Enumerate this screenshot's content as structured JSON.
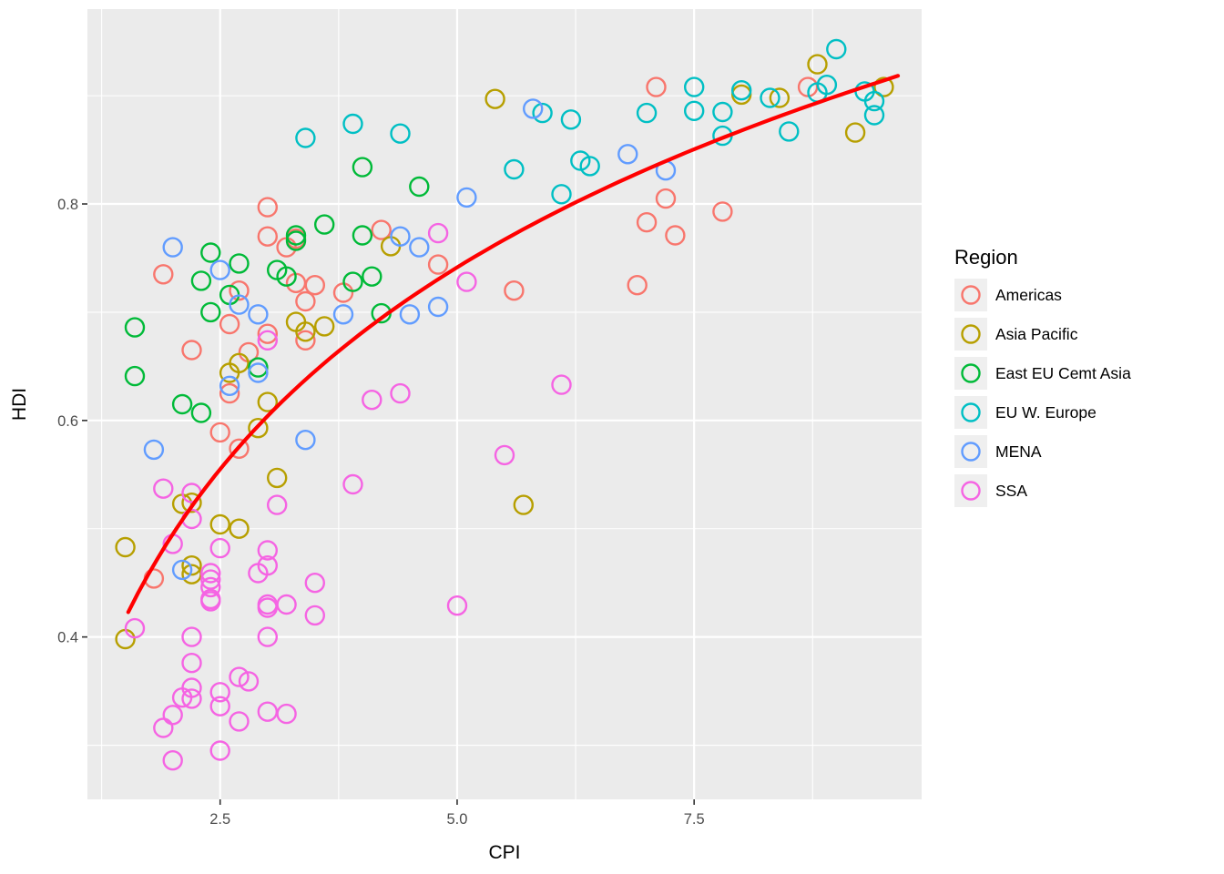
{
  "chart_data": {
    "type": "scatter",
    "title": "",
    "xlabel": "CPI",
    "ylabel": "HDI",
    "xlim": [
      1.1,
      9.9
    ],
    "ylim": [
      0.25,
      0.98
    ],
    "x_ticks": [
      2.5,
      5.0,
      7.5
    ],
    "x_tick_labels": [
      "2.5",
      "5.0",
      "7.5"
    ],
    "y_ticks": [
      0.4,
      0.6,
      0.8
    ],
    "y_tick_labels": [
      "0.4",
      "0.6",
      "0.8"
    ],
    "x_minor_ticks": [
      1.25,
      3.75,
      6.25,
      8.75
    ],
    "y_minor_ticks": [
      0.3,
      0.5,
      0.7,
      0.9
    ],
    "grid": true,
    "panel_bg": "#EBEBEB",
    "grid_color": "#FFFFFF",
    "tick_label_color": "#4D4D4D",
    "point_style": {
      "shape": "open-circle",
      "radius": 10,
      "stroke_width": 2.4
    },
    "legend": {
      "title": "Region",
      "position": "right"
    },
    "trend": {
      "type": "log",
      "color": "#FF0000",
      "a": 0.3085,
      "b": 0.269,
      "x_start": 1.53,
      "x_end": 9.65
    },
    "series": [
      {
        "name": "Americas",
        "color": "#F8766D",
        "points": [
          [
            1.8,
            0.454
          ],
          [
            1.9,
            0.735
          ],
          [
            2.2,
            0.665
          ],
          [
            2.5,
            0.589
          ],
          [
            2.6,
            0.625
          ],
          [
            2.6,
            0.689
          ],
          [
            2.7,
            0.574
          ],
          [
            2.7,
            0.72
          ],
          [
            2.8,
            0.663
          ],
          [
            3.0,
            0.68
          ],
          [
            3.0,
            0.77
          ],
          [
            3.0,
            0.797
          ],
          [
            3.2,
            0.76
          ],
          [
            3.3,
            0.727
          ],
          [
            3.3,
            0.768
          ],
          [
            3.4,
            0.674
          ],
          [
            3.4,
            0.71
          ],
          [
            3.5,
            0.725
          ],
          [
            3.8,
            0.718
          ],
          [
            4.2,
            0.776
          ],
          [
            4.8,
            0.744
          ],
          [
            5.6,
            0.72
          ],
          [
            6.9,
            0.725
          ],
          [
            7.0,
            0.783
          ],
          [
            7.1,
            0.908
          ],
          [
            7.2,
            0.805
          ],
          [
            7.3,
            0.771
          ],
          [
            7.8,
            0.793
          ],
          [
            8.7,
            0.908
          ]
        ]
      },
      {
        "name": "Asia Pacific",
        "color": "#B79F00",
        "points": [
          [
            1.5,
            0.398
          ],
          [
            1.5,
            0.483
          ],
          [
            2.1,
            0.523
          ],
          [
            2.2,
            0.458
          ],
          [
            2.2,
            0.466
          ],
          [
            2.2,
            0.524
          ],
          [
            2.5,
            0.504
          ],
          [
            2.7,
            0.5
          ],
          [
            2.6,
            0.644
          ],
          [
            2.7,
            0.653
          ],
          [
            2.9,
            0.593
          ],
          [
            3.0,
            0.617
          ],
          [
            3.1,
            0.547
          ],
          [
            3.3,
            0.691
          ],
          [
            3.4,
            0.682
          ],
          [
            3.6,
            0.687
          ],
          [
            4.3,
            0.761
          ],
          [
            5.7,
            0.522
          ],
          [
            5.4,
            0.897
          ],
          [
            8.0,
            0.901
          ],
          [
            8.4,
            0.898
          ],
          [
            8.8,
            0.929
          ],
          [
            9.2,
            0.866
          ],
          [
            9.5,
            0.908
          ]
        ]
      },
      {
        "name": "East EU Cemt Asia",
        "color": "#00BA38",
        "points": [
          [
            1.6,
            0.641
          ],
          [
            1.6,
            0.686
          ],
          [
            2.1,
            0.615
          ],
          [
            2.3,
            0.607
          ],
          [
            2.3,
            0.729
          ],
          [
            2.4,
            0.7
          ],
          [
            2.4,
            0.755
          ],
          [
            2.6,
            0.716
          ],
          [
            2.7,
            0.745
          ],
          [
            2.9,
            0.649
          ],
          [
            3.1,
            0.739
          ],
          [
            3.2,
            0.733
          ],
          [
            3.3,
            0.766
          ],
          [
            3.3,
            0.771
          ],
          [
            3.6,
            0.781
          ],
          [
            3.9,
            0.728
          ],
          [
            4.0,
            0.771
          ],
          [
            4.0,
            0.834
          ],
          [
            4.1,
            0.733
          ],
          [
            4.2,
            0.699
          ],
          [
            4.6,
            0.816
          ]
        ]
      },
      {
        "name": "EU W. Europe",
        "color": "#00BFC4",
        "points": [
          [
            3.4,
            0.861
          ],
          [
            3.9,
            0.874
          ],
          [
            4.4,
            0.865
          ],
          [
            5.6,
            0.832
          ],
          [
            5.9,
            0.884
          ],
          [
            6.1,
            0.809
          ],
          [
            6.2,
            0.878
          ],
          [
            6.3,
            0.84
          ],
          [
            6.4,
            0.835
          ],
          [
            7.0,
            0.884
          ],
          [
            7.5,
            0.886
          ],
          [
            7.5,
            0.908
          ],
          [
            7.8,
            0.863
          ],
          [
            7.8,
            0.885
          ],
          [
            8.0,
            0.905
          ],
          [
            8.3,
            0.898
          ],
          [
            8.5,
            0.867
          ],
          [
            8.8,
            0.903
          ],
          [
            8.9,
            0.91
          ],
          [
            9.0,
            0.943
          ],
          [
            9.3,
            0.904
          ],
          [
            9.4,
            0.882
          ],
          [
            9.4,
            0.895
          ]
        ]
      },
      {
        "name": "MENA",
        "color": "#619CFF",
        "points": [
          [
            1.8,
            0.573
          ],
          [
            2.0,
            0.76
          ],
          [
            2.1,
            0.462
          ],
          [
            2.5,
            0.739
          ],
          [
            2.6,
            0.632
          ],
          [
            2.7,
            0.707
          ],
          [
            2.9,
            0.644
          ],
          [
            2.9,
            0.698
          ],
          [
            3.4,
            0.582
          ],
          [
            3.8,
            0.698
          ],
          [
            4.4,
            0.77
          ],
          [
            4.5,
            0.698
          ],
          [
            4.6,
            0.76
          ],
          [
            4.8,
            0.705
          ],
          [
            5.1,
            0.806
          ],
          [
            5.8,
            0.888
          ],
          [
            6.8,
            0.846
          ],
          [
            7.2,
            0.831
          ]
        ]
      },
      {
        "name": "SSA",
        "color": "#F564E3",
        "points": [
          [
            1.6,
            0.408
          ],
          [
            1.9,
            0.316
          ],
          [
            1.9,
            0.537
          ],
          [
            2.0,
            0.286
          ],
          [
            2.0,
            0.328
          ],
          [
            2.0,
            0.486
          ],
          [
            2.1,
            0.344
          ],
          [
            2.2,
            0.343
          ],
          [
            2.2,
            0.353
          ],
          [
            2.2,
            0.376
          ],
          [
            2.2,
            0.4
          ],
          [
            2.2,
            0.509
          ],
          [
            2.2,
            0.533
          ],
          [
            2.4,
            0.433
          ],
          [
            2.4,
            0.435
          ],
          [
            2.4,
            0.446
          ],
          [
            2.4,
            0.453
          ],
          [
            2.4,
            0.459
          ],
          [
            2.5,
            0.295
          ],
          [
            2.5,
            0.336
          ],
          [
            2.5,
            0.349
          ],
          [
            2.5,
            0.482
          ],
          [
            2.7,
            0.322
          ],
          [
            2.7,
            0.363
          ],
          [
            2.8,
            0.359
          ],
          [
            2.9,
            0.459
          ],
          [
            3.0,
            0.331
          ],
          [
            3.0,
            0.4
          ],
          [
            3.0,
            0.427
          ],
          [
            3.0,
            0.43
          ],
          [
            3.0,
            0.466
          ],
          [
            3.0,
            0.48
          ],
          [
            3.0,
            0.674
          ],
          [
            3.1,
            0.522
          ],
          [
            3.2,
            0.329
          ],
          [
            3.2,
            0.43
          ],
          [
            3.5,
            0.42
          ],
          [
            3.5,
            0.45
          ],
          [
            3.9,
            0.541
          ],
          [
            4.1,
            0.619
          ],
          [
            4.4,
            0.625
          ],
          [
            4.8,
            0.773
          ],
          [
            5.0,
            0.429
          ],
          [
            5.1,
            0.728
          ],
          [
            5.5,
            0.568
          ],
          [
            6.1,
            0.633
          ]
        ]
      }
    ]
  }
}
